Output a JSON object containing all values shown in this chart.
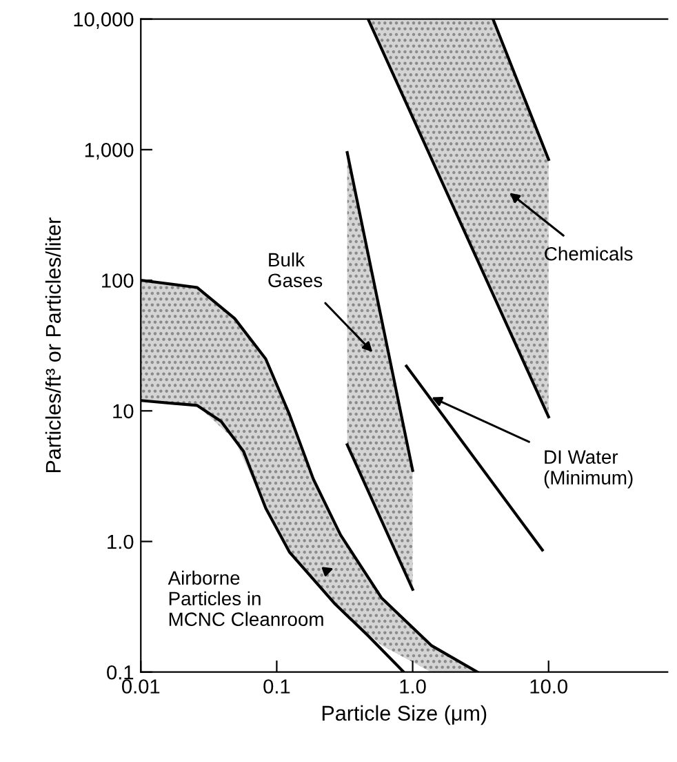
{
  "chart_data": {
    "type": "line",
    "xlabel": "Particle Size (μm)",
    "ylabel": "Particles/ft³ or Particles/liter",
    "log": "xy",
    "xlim": [
      0.01,
      75
    ],
    "ylim": [
      0.1,
      10000
    ],
    "xticks": [
      {
        "value": 0.01,
        "label": "0.01"
      },
      {
        "value": 0.1,
        "label": "0.1"
      },
      {
        "value": 1,
        "label": "1.0"
      },
      {
        "value": 10,
        "label": "10.0"
      }
    ],
    "yticks": [
      {
        "value": 0.1,
        "label": "0.1"
      },
      {
        "value": 1,
        "label": "1.0"
      },
      {
        "value": 10,
        "label": "10"
      },
      {
        "value": 100,
        "label": "100"
      },
      {
        "value": 1000,
        "label": "1,000"
      },
      {
        "value": 10000,
        "label": "10,000"
      }
    ],
    "series": [
      {
        "color": "#000000",
        "x": [
          0.01,
          0.026,
          0.049,
          0.083,
          0.124,
          0.186,
          0.295,
          0.59,
          1.37,
          3.0
        ],
        "values": [
          100,
          88,
          51,
          25,
          9.4,
          3.0,
          1.12,
          0.37,
          0.16,
          0.1
        ],
        "upper": [
          100,
          88,
          51,
          25,
          9.4,
          3.0,
          1.12,
          0.37,
          0.16,
          0.1
        ],
        "lower": [
          12,
          11,
          6.0,
          1.8,
          0.83,
          0.51,
          0.3,
          0.16,
          0.1,
          0.1
        ]
      },
      {
        "color": "#000000",
        "x": [
          0.01,
          0.026,
          0.039,
          0.057,
          0.083,
          0.124,
          0.27,
          0.47,
          0.86
        ],
        "values": [
          12,
          11,
          8.3,
          4.9,
          1.8,
          0.83,
          0.33,
          0.19,
          0.1
        ]
      },
      {
        "color": "#000000",
        "x": [
          0.33,
          1.0
        ],
        "values": [
          950,
          3.5
        ],
        "upper": [
          950,
          3.5
        ],
        "lower": [
          5.5,
          0.43
        ]
      },
      {
        "color": "#000000",
        "x": [
          0.33,
          1.0
        ],
        "values": [
          5.5,
          0.43
        ]
      },
      {
        "color": "#000000",
        "x": [
          3.9,
          10
        ],
        "values": [
          10000,
          840
        ]
      },
      {
        "color": "#000000",
        "x": [
          0.47,
          3.9,
          10
        ],
        "values": [
          10000,
          78,
          9
        ],
        "upper": [
          10000,
          10000,
          840
        ],
        "lower": [
          10000,
          78,
          9
        ]
      },
      {
        "color": "#000000",
        "x": [
          0.9,
          9
        ],
        "values": [
          22,
          0.86
        ]
      }
    ],
    "annotations": [
      "Bulk\nGases",
      "Chemicals",
      {
        "text": "DI Water\n(Minimum)",
        "x": 1.38,
        "y": 12.7
      },
      "Airborne\nParticles in\nMCNC Cleanroom"
    ]
  }
}
